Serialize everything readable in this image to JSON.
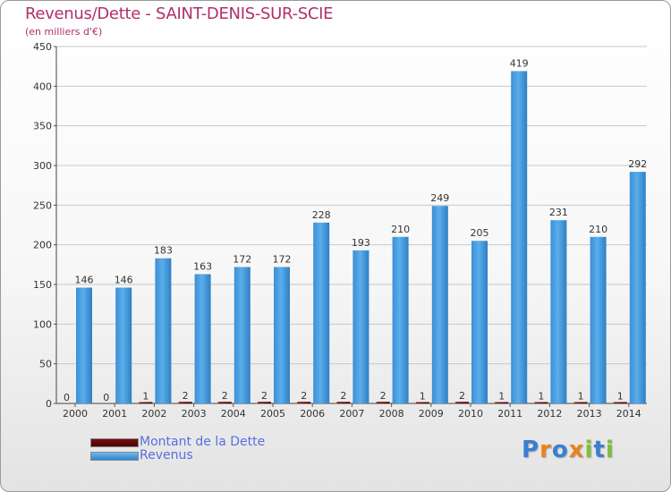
{
  "title": "Revenus/Dette - SAINT-DENIS-SUR-SCIE",
  "subtitle": "(en milliers d'€)",
  "legend": {
    "debt_label": "Montant de la Dette",
    "revenue_label": "Revenus"
  },
  "logo": {
    "text": "Proxiti"
  },
  "colors": {
    "title": "#b0306a",
    "revenue": "#4aa0e6",
    "debt": "#6a0808",
    "legend_text": "#5a6ee0"
  },
  "chart_data": {
    "type": "bar",
    "title": "Revenus/Dette - SAINT-DENIS-SUR-SCIE",
    "ylabel": "(en milliers d'€)",
    "xlabel": "",
    "ylim": [
      0,
      450
    ],
    "yticks": [
      0,
      50,
      100,
      150,
      200,
      250,
      300,
      350,
      400,
      450
    ],
    "grid": true,
    "legend_position": "bottom-left",
    "categories": [
      "2000",
      "2001",
      "2002",
      "2003",
      "2004",
      "2005",
      "2006",
      "2007",
      "2008",
      "2009",
      "2010",
      "2011",
      "2012",
      "2013",
      "2014"
    ],
    "series": [
      {
        "name": "Montant de la Dette",
        "values": [
          0,
          0,
          1,
          2,
          2,
          2,
          2,
          2,
          2,
          1,
          2,
          1,
          1,
          1,
          1
        ]
      },
      {
        "name": "Revenus",
        "values": [
          146,
          146,
          183,
          163,
          172,
          172,
          228,
          193,
          210,
          249,
          205,
          419,
          231,
          210,
          292
        ]
      }
    ]
  }
}
